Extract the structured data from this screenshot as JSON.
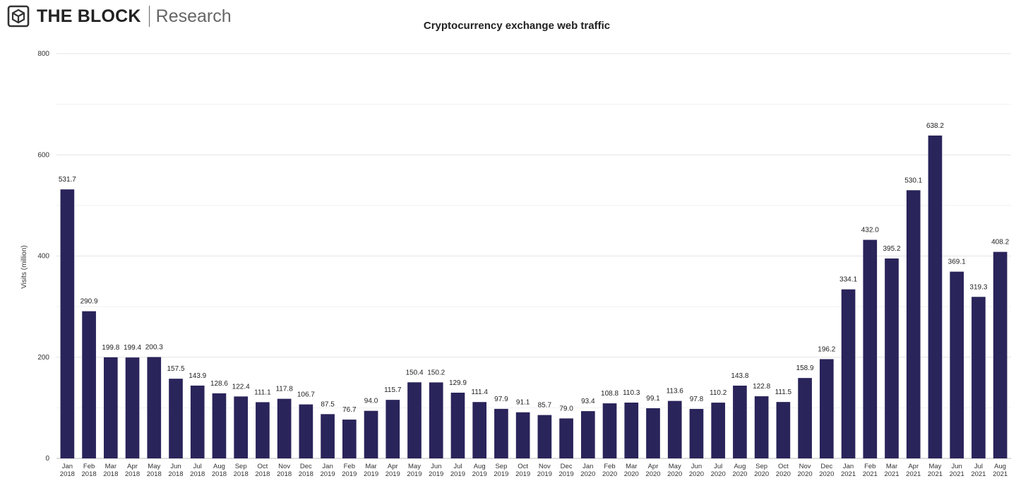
{
  "brand": {
    "name": "THE BLOCK",
    "sub": "Research",
    "logo_icon": "cube-logo-icon"
  },
  "chart_data": {
    "type": "bar",
    "title": "Cryptocurrency exchange web traffic",
    "xlabel": "",
    "ylabel": "Visits (million)",
    "ylim": [
      0,
      800
    ],
    "yticks": [
      0,
      200,
      400,
      600,
      800
    ],
    "grid": true,
    "bar_color": "#29245a",
    "categories": [
      [
        "Jan",
        "2018"
      ],
      [
        "Feb",
        "2018"
      ],
      [
        "Mar",
        "2018"
      ],
      [
        "Apr",
        "2018"
      ],
      [
        "May",
        "2018"
      ],
      [
        "Jun",
        "2018"
      ],
      [
        "Jul",
        "2018"
      ],
      [
        "Aug",
        "2018"
      ],
      [
        "Sep",
        "2018"
      ],
      [
        "Oct",
        "2018"
      ],
      [
        "Nov",
        "2018"
      ],
      [
        "Dec",
        "2018"
      ],
      [
        "Jan",
        "2019"
      ],
      [
        "Feb",
        "2019"
      ],
      [
        "Mar",
        "2019"
      ],
      [
        "Apr",
        "2019"
      ],
      [
        "May",
        "2019"
      ],
      [
        "Jun",
        "2019"
      ],
      [
        "Jul",
        "2019"
      ],
      [
        "Aug",
        "2019"
      ],
      [
        "Sep",
        "2019"
      ],
      [
        "Oct",
        "2019"
      ],
      [
        "Nov",
        "2019"
      ],
      [
        "Dec",
        "2019"
      ],
      [
        "Jan",
        "2020"
      ],
      [
        "Feb",
        "2020"
      ],
      [
        "Mar",
        "2020"
      ],
      [
        "Apr",
        "2020"
      ],
      [
        "May",
        "2020"
      ],
      [
        "Jun",
        "2020"
      ],
      [
        "Jul",
        "2020"
      ],
      [
        "Aug",
        "2020"
      ],
      [
        "Sep",
        "2020"
      ],
      [
        "Oct",
        "2020"
      ],
      [
        "Nov",
        "2020"
      ],
      [
        "Dec",
        "2020"
      ],
      [
        "Jan",
        "2021"
      ],
      [
        "Feb",
        "2021"
      ],
      [
        "Mar",
        "2021"
      ],
      [
        "Apr",
        "2021"
      ],
      [
        "May",
        "2021"
      ],
      [
        "Jun",
        "2021"
      ],
      [
        "Jul",
        "2021"
      ],
      [
        "Aug",
        "2021"
      ]
    ],
    "values": [
      531.7,
      290.9,
      199.8,
      199.4,
      200.3,
      157.5,
      143.9,
      128.6,
      122.4,
      111.1,
      117.8,
      106.7,
      87.5,
      76.7,
      94.0,
      115.7,
      150.4,
      150.2,
      129.9,
      111.4,
      97.9,
      91.1,
      85.7,
      79.0,
      93.4,
      108.8,
      110.3,
      99.1,
      113.6,
      97.8,
      110.2,
      143.8,
      122.8,
      111.5,
      158.9,
      196.2,
      334.1,
      432.0,
      395.2,
      530.1,
      638.2,
      369.1,
      319.3,
      408.2
    ],
    "value_labels": [
      "531.7",
      "290.9",
      "199.8",
      "199.4",
      "200.3",
      "157.5",
      "143.9",
      "128.6",
      "122.4",
      "111.1",
      "117.8",
      "106.7",
      "87.5",
      "76.7",
      "94.0",
      "115.7",
      "150.4",
      "150.2",
      "129.9",
      "111.4",
      "97.9",
      "91.1",
      "85.7",
      "79.0",
      "93.4",
      "108.8",
      "110.3",
      "99.1",
      "113.6",
      "97.8",
      "110.2",
      "143.8",
      "122.8",
      "111.5",
      "158.9",
      "196.2",
      "334.1",
      "432.0",
      "395.2",
      "530.1",
      "638.2",
      "369.1",
      "319.3",
      "408.2"
    ]
  }
}
